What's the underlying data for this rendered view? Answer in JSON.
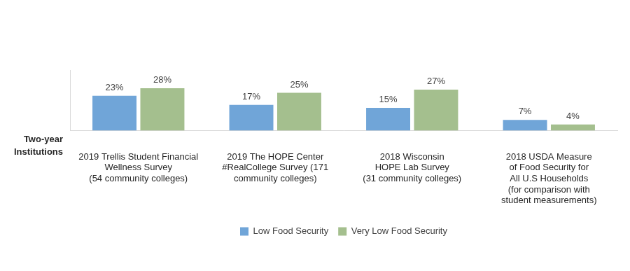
{
  "chart_data": {
    "type": "bar",
    "annotation": "Two-year Institutions",
    "categories": [
      [
        "2019 Trellis Student Financial",
        "Wellness Survey",
        "(54 community colleges)"
      ],
      [
        "2019 The HOPE Center",
        "#RealCollege Survey (171",
        "community colleges)"
      ],
      [
        "2018 Wisconsin",
        "HOPE Lab Survey",
        "(31 community colleges)"
      ],
      [
        "2018 USDA Measure",
        "of Food Security for",
        "All U.S Households",
        "(for comparison with",
        "student measurements)"
      ]
    ],
    "series": [
      {
        "name": "Low Food Security",
        "color": "#70a5d8",
        "values": [
          23,
          17,
          15,
          7
        ],
        "value_labels": [
          "23%",
          "17%",
          "15%",
          "7%"
        ]
      },
      {
        "name": "Very Low Food Security",
        "color": "#a4bf8e",
        "values": [
          28,
          25,
          27,
          4
        ],
        "value_labels": [
          "28%",
          "25%",
          "27%",
          "4%"
        ]
      }
    ],
    "ylim": [
      0,
      40
    ],
    "grid": false,
    "legend": "bottom",
    "data_labels": true,
    "tick_labels": "x"
  }
}
